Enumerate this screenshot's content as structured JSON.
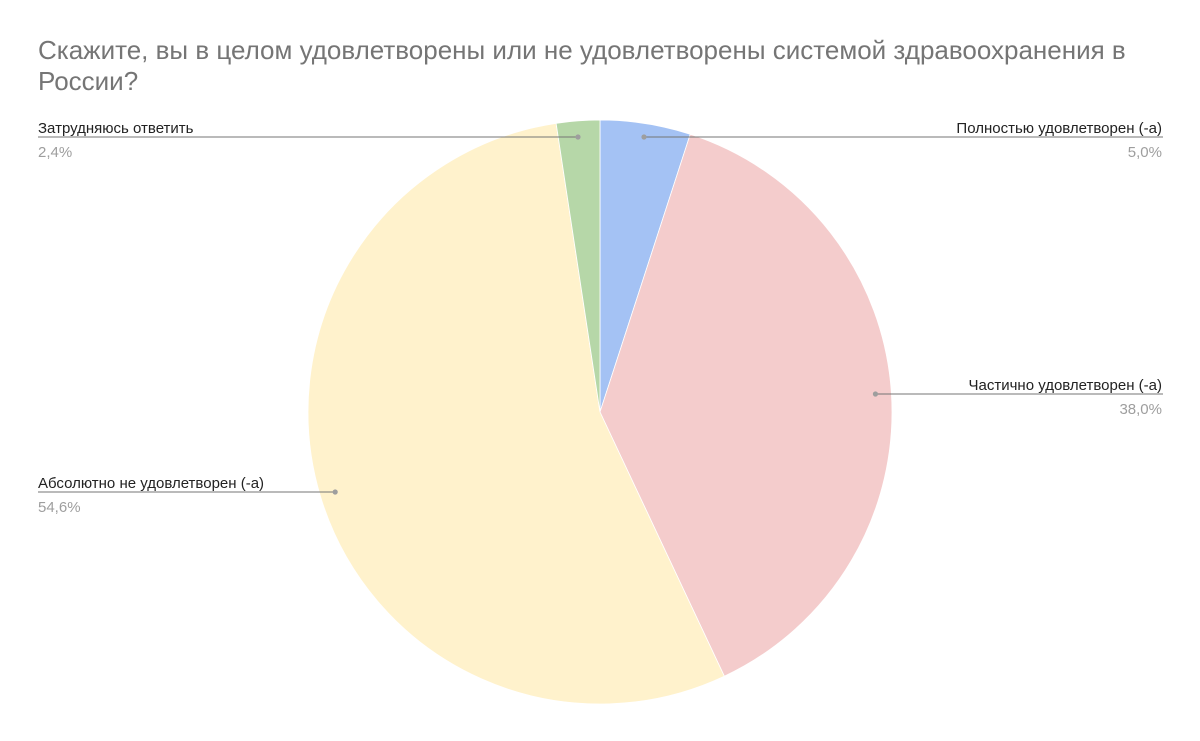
{
  "chart_data": {
    "type": "pie",
    "title": "Скажите, вы в целом удовлетворены или не удовлетворены системой здравоохранения в России?",
    "legend": "none",
    "slices": [
      {
        "label": "Полностью удовлетворен (-а)",
        "value": 5.0,
        "value_label": "5,0%",
        "color": "#a4c2f4"
      },
      {
        "label": "Частично удовлетворен (-а)",
        "value": 38.0,
        "value_label": "38,0%",
        "color": "#f4cccc"
      },
      {
        "label": "Абсолютно не удовлетворен (-а)",
        "value": 54.6,
        "value_label": "54,6%",
        "color": "#fff2cc"
      },
      {
        "label": "Затрудняюсь ответить",
        "value": 2.4,
        "value_label": "2,4%",
        "color": "#b6d7a8"
      }
    ]
  }
}
